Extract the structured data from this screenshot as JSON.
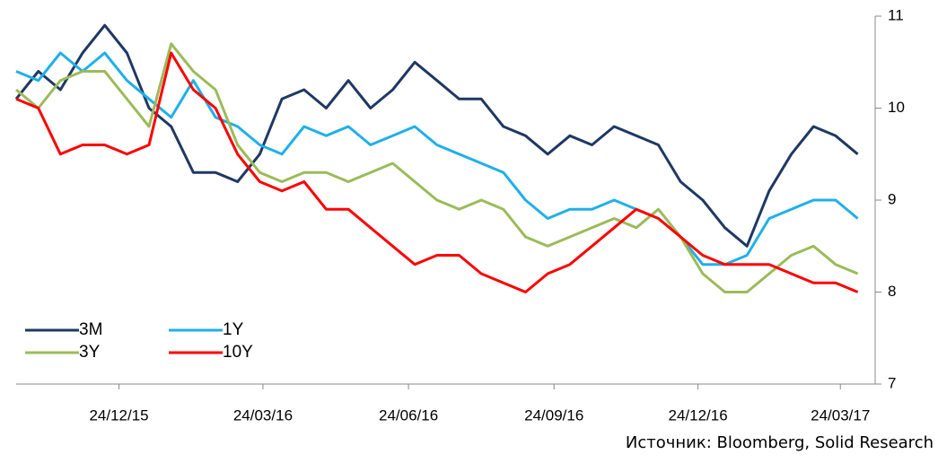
{
  "chart_data": {
    "type": "line",
    "x": [
      "2015-10-20",
      "2015-11-03",
      "2015-11-17",
      "2015-12-01",
      "2015-12-15",
      "2015-12-29",
      "2016-01-12",
      "2016-01-26",
      "2016-02-09",
      "2016-02-23",
      "2016-03-08",
      "2016-03-22",
      "2016-04-05",
      "2016-04-19",
      "2016-05-03",
      "2016-05-17",
      "2016-05-31",
      "2016-06-14",
      "2016-06-28",
      "2016-07-12",
      "2016-07-26",
      "2016-08-09",
      "2016-08-23",
      "2016-09-06",
      "2016-09-20",
      "2016-10-04",
      "2016-10-18",
      "2016-11-01",
      "2016-11-15",
      "2016-11-29",
      "2016-12-13",
      "2016-12-27",
      "2017-01-10",
      "2017-01-24",
      "2017-02-07",
      "2017-02-21",
      "2017-03-07",
      "2017-03-21",
      "2017-04-04"
    ],
    "series": [
      {
        "name": "3M",
        "color": "#1f3864",
        "values": [
          10.1,
          10.4,
          10.2,
          10.6,
          10.9,
          10.6,
          10.0,
          9.8,
          9.3,
          9.3,
          9.2,
          9.5,
          10.1,
          10.2,
          10.0,
          10.3,
          10.0,
          10.2,
          10.5,
          10.3,
          10.1,
          10.1,
          9.8,
          9.7,
          9.5,
          9.7,
          9.6,
          9.8,
          9.7,
          9.6,
          9.2,
          9.0,
          8.7,
          8.5,
          9.1,
          9.5,
          9.8,
          9.7,
          9.5
        ]
      },
      {
        "name": "1Y",
        "color": "#1fb0e8",
        "values": [
          10.4,
          10.3,
          10.6,
          10.4,
          10.6,
          10.3,
          10.1,
          9.9,
          10.3,
          9.9,
          9.8,
          9.6,
          9.5,
          9.8,
          9.7,
          9.8,
          9.6,
          9.7,
          9.8,
          9.6,
          9.5,
          9.4,
          9.3,
          9.0,
          8.8,
          8.9,
          8.9,
          9.0,
          8.9,
          8.8,
          8.6,
          8.3,
          8.3,
          8.4,
          8.8,
          8.9,
          9.0,
          9.0,
          8.8
        ]
      },
      {
        "name": "3Y",
        "color": "#9bbb59",
        "values": [
          10.2,
          10.0,
          10.3,
          10.4,
          10.4,
          10.1,
          9.8,
          10.7,
          10.4,
          10.2,
          9.6,
          9.3,
          9.2,
          9.3,
          9.3,
          9.2,
          9.3,
          9.4,
          9.2,
          9.0,
          8.9,
          9.0,
          8.9,
          8.6,
          8.5,
          8.6,
          8.7,
          8.8,
          8.7,
          8.9,
          8.6,
          8.2,
          8.0,
          8.0,
          8.2,
          8.4,
          8.5,
          8.3,
          8.2
        ]
      },
      {
        "name": "10Y",
        "color": "#ff0000",
        "values": [
          10.1,
          10.0,
          9.5,
          9.6,
          9.6,
          9.5,
          9.6,
          10.6,
          10.2,
          10.0,
          9.5,
          9.2,
          9.1,
          9.2,
          8.9,
          8.9,
          8.7,
          8.5,
          8.3,
          8.4,
          8.4,
          8.2,
          8.1,
          8.0,
          8.2,
          8.3,
          8.5,
          8.7,
          8.9,
          8.8,
          8.6,
          8.4,
          8.3,
          8.3,
          8.3,
          8.2,
          8.1,
          8.1,
          8.0
        ]
      }
    ],
    "xlim": [
      "2015-10-20",
      "2017-04-15"
    ],
    "xticks": [
      {
        "value": "2015-12-24",
        "label": "24/12/15"
      },
      {
        "value": "2016-03-24",
        "label": "24/03/16"
      },
      {
        "value": "2016-06-24",
        "label": "24/06/16"
      },
      {
        "value": "2016-09-24",
        "label": "24/09/16"
      },
      {
        "value": "2016-12-24",
        "label": "24/12/16"
      },
      {
        "value": "2017-03-24",
        "label": "24/03/17"
      }
    ],
    "ylim": [
      7,
      11
    ],
    "yticks": [
      7,
      8,
      9,
      10,
      11
    ],
    "source": "Источник: Bloomberg, Solid Research"
  }
}
